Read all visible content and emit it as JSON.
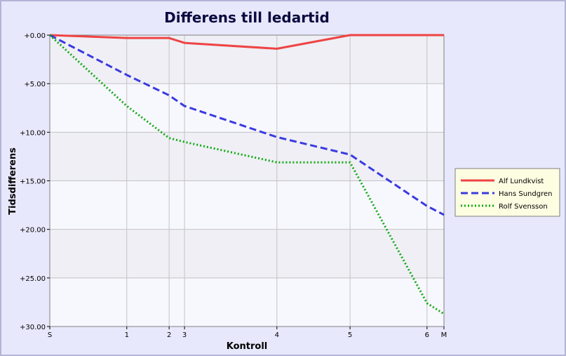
{
  "chart_data": {
    "type": "line",
    "title": "Differens till ledartid",
    "xlabel": "Kontroll",
    "ylabel": "Tidsdifferens",
    "x_ticks": [
      {
        "label": "S",
        "pos": 0
      },
      {
        "label": "1",
        "pos": 1
      },
      {
        "label": "2",
        "pos": 1.55
      },
      {
        "label": "3",
        "pos": 1.75
      },
      {
        "label": "4",
        "pos": 2.95
      },
      {
        "label": "5",
        "pos": 3.9
      },
      {
        "label": "6",
        "pos": 4.9
      },
      {
        "label": "M",
        "pos": 5.12
      }
    ],
    "xlim": [
      0,
      5.12
    ],
    "ylim": [
      0,
      30
    ],
    "y_inverted": true,
    "y_ticks": [
      0,
      5,
      10,
      15,
      20,
      25,
      30
    ],
    "y_tick_labels": [
      "+0.00",
      "+5.00",
      "+10.00",
      "+15.00",
      "+20.00",
      "+25.00",
      "+30.00"
    ],
    "grid": true,
    "legend_position": "right",
    "series": [
      {
        "name": "Alf Lundkvist",
        "color": "#ee4444",
        "dash": "solid",
        "values": [
          0.0,
          0.3,
          0.3,
          0.8,
          1.4,
          0.0,
          0.0,
          0.0
        ]
      },
      {
        "name": "Hans Sundgren",
        "color": "#3a3ae0",
        "dash": "dashed",
        "values": [
          0.0,
          4.1,
          6.2,
          7.3,
          10.5,
          12.3,
          17.6,
          18.5
        ]
      },
      {
        "name": "Rolf Svensson",
        "color": "#11aa11",
        "dash": "dotted",
        "values": [
          0.0,
          7.3,
          10.6,
          11.0,
          13.1,
          13.1,
          27.6,
          28.7
        ]
      }
    ]
  }
}
